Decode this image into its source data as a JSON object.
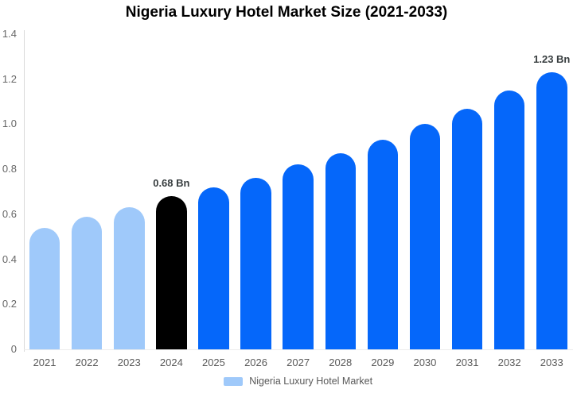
{
  "chart_data": {
    "type": "bar",
    "title": "Nigeria Luxury Hotel Market Size (2021-2033)",
    "xlabel": "",
    "ylabel": "",
    "categories": [
      "2021",
      "2022",
      "2023",
      "2024",
      "2025",
      "2026",
      "2027",
      "2028",
      "2029",
      "2030",
      "2031",
      "2032",
      "2033"
    ],
    "series": [
      {
        "name": "Nigeria Luxury Hotel Market",
        "values": [
          0.54,
          0.59,
          0.63,
          0.68,
          0.72,
          0.76,
          0.82,
          0.87,
          0.93,
          1.0,
          1.07,
          1.15,
          1.23
        ]
      }
    ],
    "value_suffix": "Bn",
    "data_labels": [
      {
        "index": 3,
        "text": "0.68 Bn"
      },
      {
        "index": 12,
        "text": "1.23 Bn"
      }
    ],
    "ylim": [
      0,
      1.4
    ],
    "yticks": [
      {
        "v": 0,
        "label": "0"
      },
      {
        "v": 0.2,
        "label": "0.2"
      },
      {
        "v": 0.4,
        "label": "0.4"
      },
      {
        "v": 0.6,
        "label": "0.6"
      },
      {
        "v": 0.8,
        "label": "0.8"
      },
      {
        "v": 1.0,
        "label": "1.0"
      },
      {
        "v": 1.2,
        "label": "1.2"
      },
      {
        "v": 1.4,
        "label": "1.4"
      }
    ],
    "grid": false,
    "legend": {
      "position": "bottom",
      "label": "Nigeria Luxury Hotel Market",
      "swatch_color": "#9fc9fa"
    },
    "bar_colors": [
      "#9fc9fa",
      "#9fc9fa",
      "#9fc9fa",
      "#000000",
      "#0567fa",
      "#0567fa",
      "#0567fa",
      "#0567fa",
      "#0567fa",
      "#0567fa",
      "#0567fa",
      "#0567fa",
      "#0567fa"
    ],
    "colors": {
      "historical_bar": "#9fc9fa",
      "highlight_bar": "#000000",
      "forecast_bar": "#0567fa",
      "axis_text": "#666666",
      "category_text": "#595959",
      "data_label_text": "#373d3f",
      "title_text": "#000000",
      "axis_line": "#d9d9d9"
    }
  }
}
